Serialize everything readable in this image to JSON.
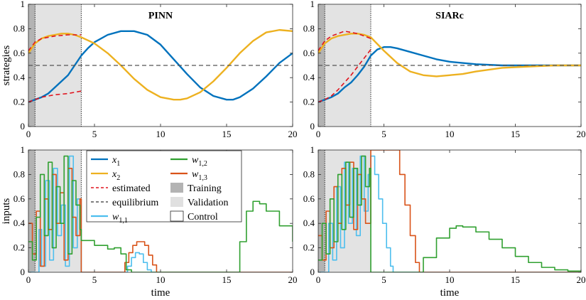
{
  "chart_data": [
    {
      "type": "line",
      "title": "PINN",
      "ylabel": "strategies",
      "xlabel": "",
      "xlim": [
        0,
        20
      ],
      "ylim": [
        0,
        1
      ],
      "xticks": [
        "0",
        "5",
        "10",
        "15",
        "20"
      ],
      "yticks": [
        "0",
        "0.2",
        "0.4",
        "0.6",
        "0.8",
        "1"
      ],
      "regions": {
        "training": [
          0,
          0.5
        ],
        "validation": [
          0.5,
          4
        ]
      },
      "series": [
        {
          "name": "x1",
          "color": "#0072BD",
          "style": "solid",
          "x": [
            0,
            0.5,
            1,
            1.5,
            2,
            2.5,
            3,
            3.5,
            4,
            4.5,
            5,
            6,
            7,
            8,
            9,
            10,
            11,
            12,
            13,
            14,
            15,
            15.5,
            16,
            17,
            18,
            19,
            20
          ],
          "y": [
            0.2,
            0.22,
            0.24,
            0.27,
            0.32,
            0.37,
            0.42,
            0.5,
            0.58,
            0.64,
            0.69,
            0.75,
            0.78,
            0.78,
            0.75,
            0.67,
            0.55,
            0.43,
            0.32,
            0.25,
            0.22,
            0.22,
            0.24,
            0.31,
            0.41,
            0.52,
            0.6
          ]
        },
        {
          "name": "x2",
          "color": "#EDB120",
          "style": "solid",
          "x": [
            0,
            0.5,
            1,
            1.5,
            2,
            2.5,
            3,
            3.5,
            4,
            5,
            6,
            7,
            8,
            9,
            10,
            11,
            11.5,
            12,
            13,
            14,
            15,
            16,
            17,
            18,
            19,
            20
          ],
          "y": [
            0.6,
            0.68,
            0.72,
            0.74,
            0.75,
            0.76,
            0.76,
            0.75,
            0.73,
            0.68,
            0.6,
            0.5,
            0.39,
            0.3,
            0.24,
            0.22,
            0.22,
            0.23,
            0.28,
            0.37,
            0.48,
            0.6,
            0.7,
            0.77,
            0.79,
            0.78
          ]
        },
        {
          "name": "estimated",
          "color": "#E0141E",
          "style": "dashed",
          "x": [
            0,
            1,
            2,
            3,
            4
          ],
          "y": [
            0.2,
            0.24,
            0.26,
            0.27,
            0.29
          ]
        },
        {
          "name": "estimated",
          "color": "#E0141E",
          "style": "dashed",
          "x": [
            0,
            0.5,
            1,
            2,
            3,
            4
          ],
          "y": [
            0.62,
            0.69,
            0.72,
            0.74,
            0.75,
            0.75
          ]
        },
        {
          "name": "equilibrium",
          "color": "#555555",
          "style": "dashed",
          "x": [
            0,
            20
          ],
          "y": [
            0.5,
            0.5
          ]
        }
      ]
    },
    {
      "type": "line",
      "title": "SIARc",
      "ylabel": "",
      "xlabel": "",
      "xlim": [
        0,
        20
      ],
      "ylim": [
        0,
        1
      ],
      "xticks": [
        "0",
        "5",
        "10",
        "15",
        "20"
      ],
      "yticks": [
        "0",
        "0.2",
        "0.4",
        "0.6",
        "0.8",
        "1"
      ],
      "regions": {
        "training": [
          0,
          0.5
        ],
        "validation": [
          0.5,
          4
        ]
      },
      "series": [
        {
          "name": "x1",
          "color": "#0072BD",
          "style": "solid",
          "x": [
            0,
            0.5,
            1,
            1.5,
            2,
            2.5,
            3,
            3.5,
            4,
            4.5,
            5,
            5.5,
            6,
            7,
            8,
            9,
            10,
            12,
            14,
            16,
            18,
            20
          ],
          "y": [
            0.2,
            0.22,
            0.24,
            0.27,
            0.32,
            0.36,
            0.42,
            0.49,
            0.58,
            0.63,
            0.65,
            0.65,
            0.64,
            0.61,
            0.58,
            0.55,
            0.53,
            0.51,
            0.5,
            0.5,
            0.5,
            0.5
          ]
        },
        {
          "name": "x2",
          "color": "#EDB120",
          "style": "solid",
          "x": [
            0,
            0.5,
            1,
            1.5,
            2,
            2.5,
            3,
            3.5,
            4,
            5,
            6,
            7,
            8,
            9,
            10,
            11,
            12,
            14,
            16,
            18,
            20
          ],
          "y": [
            0.6,
            0.68,
            0.72,
            0.74,
            0.75,
            0.76,
            0.76,
            0.75,
            0.73,
            0.62,
            0.52,
            0.45,
            0.42,
            0.41,
            0.42,
            0.43,
            0.45,
            0.48,
            0.49,
            0.5,
            0.5
          ]
        },
        {
          "name": "estimated",
          "color": "#E0141E",
          "style": "dashed",
          "x": [
            0,
            0.5,
            1,
            1.5,
            2,
            2.5,
            3,
            3.5,
            4
          ],
          "y": [
            0.2,
            0.22,
            0.25,
            0.3,
            0.36,
            0.42,
            0.49,
            0.56,
            0.63
          ]
        },
        {
          "name": "estimated",
          "color": "#E0141E",
          "style": "dashed",
          "x": [
            0,
            0.5,
            1,
            1.5,
            2,
            2.5,
            3,
            3.5,
            4
          ],
          "y": [
            0.62,
            0.7,
            0.74,
            0.76,
            0.78,
            0.77,
            0.76,
            0.74,
            0.72
          ]
        },
        {
          "name": "equilibrium",
          "color": "#555555",
          "style": "dashed",
          "x": [
            0,
            20
          ],
          "y": [
            0.5,
            0.5
          ]
        }
      ]
    },
    {
      "type": "line",
      "title": "",
      "ylabel": "inputs",
      "xlabel": "time",
      "xlim": [
        0,
        20
      ],
      "ylim": [
        0,
        1
      ],
      "xticks": [
        "0",
        "5",
        "10",
        "15",
        "20"
      ],
      "yticks": [
        "0",
        "0.2",
        "0.4",
        "0.6",
        "0.8",
        "1"
      ],
      "regions": {
        "training": [
          0,
          0.5
        ],
        "validation": [
          0.5,
          4
        ]
      },
      "series": [
        {
          "name": "w_{1,1}",
          "color": "#4DBEEE",
          "style": "step",
          "x": [
            0,
            0.5,
            0.8,
            1.0,
            1.3,
            1.6,
            1.9,
            2.2,
            2.5,
            2.8,
            3.1,
            3.4,
            3.7,
            4.0,
            7.2,
            7.5,
            7.8,
            8.1,
            8.4,
            8.7,
            9.0,
            9.3
          ],
          "y": [
            0,
            0,
            0.35,
            0.05,
            0.75,
            0.1,
            0.85,
            0.3,
            0.55,
            0.05,
            0.95,
            0.2,
            0.6,
            0,
            0,
            0.05,
            0.12,
            0.16,
            0.15,
            0.08,
            0.02,
            0
          ]
        },
        {
          "name": "w_{1,3}",
          "color": "#D95319",
          "style": "step",
          "x": [
            0,
            0.3,
            0.6,
            0.9,
            1.2,
            1.5,
            1.8,
            2.1,
            2.4,
            2.7,
            3.0,
            3.3,
            3.6,
            3.9,
            4.0,
            7.0,
            7.3,
            7.6,
            7.9,
            8.2,
            8.5,
            8.8,
            9.1,
            9.4,
            9.7
          ],
          "y": [
            0.4,
            0.15,
            0.5,
            0.05,
            0.6,
            0.35,
            0.8,
            0.4,
            0.65,
            0.1,
            0.85,
            0.45,
            0.3,
            0.6,
            0,
            0,
            0.08,
            0.16,
            0.22,
            0.25,
            0.25,
            0.22,
            0.14,
            0.06,
            0
          ]
        },
        {
          "name": "w_{1,2}",
          "color": "#30A030",
          "style": "step",
          "x": [
            0,
            0.3,
            0.6,
            0.9,
            1.2,
            1.5,
            1.8,
            2.1,
            2.4,
            2.7,
            3.0,
            3.3,
            3.6,
            3.9,
            4.0,
            5,
            6,
            6.5,
            7.0,
            7.4,
            7.8,
            15.8,
            16.0,
            16.5,
            17.0,
            17.5,
            18,
            19,
            20
          ],
          "y": [
            0.25,
            0.1,
            0.45,
            0.8,
            0.3,
            0.9,
            0.2,
            0.7,
            0.4,
            0.95,
            0.15,
            0.75,
            0.55,
            0.35,
            0.26,
            0.22,
            0.19,
            0.2,
            0.15,
            0.02,
            0,
            0,
            0.25,
            0.5,
            0.58,
            0.56,
            0.5,
            0.38,
            0.25
          ]
        }
      ]
    },
    {
      "type": "line",
      "title": "",
      "ylabel": "",
      "xlabel": "time",
      "xlim": [
        0,
        20
      ],
      "ylim": [
        0,
        1
      ],
      "xticks": [
        "0",
        "5",
        "10",
        "15",
        "20"
      ],
      "yticks": [
        "0",
        "0.2",
        "0.4",
        "0.6",
        "0.8",
        "1"
      ],
      "regions": {
        "training": [
          0,
          0.5
        ],
        "validation": [
          0.5,
          4
        ]
      },
      "series": [
        {
          "name": "w_{1,1}",
          "color": "#4DBEEE",
          "style": "step",
          "x": [
            0,
            0.5,
            0.8,
            1.1,
            1.4,
            1.7,
            2.0,
            2.3,
            2.6,
            2.9,
            3.2,
            3.5,
            3.8,
            4.0,
            4.3,
            4.6,
            4.9,
            5.2,
            5.5,
            5.7
          ],
          "y": [
            0,
            0,
            0.4,
            0.1,
            0.7,
            0.2,
            0.9,
            0.4,
            0.85,
            0.3,
            0.95,
            0.5,
            0.8,
            0.95,
            0.8,
            0.6,
            0.4,
            0.2,
            0.05,
            0
          ]
        },
        {
          "name": "w_{1,3}",
          "color": "#D95319",
          "style": "step",
          "x": [
            0,
            0.3,
            0.6,
            0.9,
            1.2,
            1.5,
            1.8,
            2.1,
            2.4,
            2.7,
            3.0,
            3.3,
            3.6,
            4.0,
            5.8,
            6.2,
            6.6,
            7.0,
            7.4,
            7.7
          ],
          "y": [
            0.3,
            0.1,
            0.5,
            0.2,
            0.7,
            0.4,
            0.85,
            0.55,
            0.9,
            0.35,
            0.8,
            0.6,
            0.4,
            1.0,
            1.0,
            0.8,
            0.55,
            0.3,
            0.08,
            0
          ]
        },
        {
          "name": "w_{1,2}",
          "color": "#30A030",
          "style": "step",
          "x": [
            0,
            0.3,
            0.6,
            0.9,
            1.2,
            1.5,
            1.8,
            2.1,
            2.4,
            2.7,
            3.0,
            3.3,
            3.6,
            3.9,
            4.0,
            7.6,
            8,
            9,
            10,
            10.5,
            11,
            12,
            13,
            14,
            15,
            16,
            17,
            18,
            19,
            20
          ],
          "y": [
            0.1,
            0.4,
            0.15,
            0.6,
            0.25,
            0.8,
            0.35,
            0.9,
            0.45,
            0.85,
            0.55,
            0.95,
            0.7,
            0.85,
            0,
            0,
            0.12,
            0.28,
            0.36,
            0.38,
            0.37,
            0.33,
            0.27,
            0.2,
            0.13,
            0.08,
            0.04,
            0.02,
            0.01,
            0.01
          ]
        }
      ]
    }
  ],
  "legend": {
    "entries": [
      {
        "label": "x",
        "sub": "1",
        "color": "#0072BD",
        "kind": "line"
      },
      {
        "label": "x",
        "sub": "2",
        "color": "#EDB120",
        "kind": "line"
      },
      {
        "label": "estimated",
        "sub": "",
        "color": "#E0141E",
        "kind": "dashed"
      },
      {
        "label": "equilibrium",
        "sub": "",
        "color": "#555555",
        "kind": "dashed"
      },
      {
        "label": "w",
        "sub": "1,1",
        "color": "#4DBEEE",
        "kind": "line"
      },
      {
        "label": "w",
        "sub": "1,2",
        "color": "#30A030",
        "kind": "line"
      },
      {
        "label": "w",
        "sub": "1,3",
        "color": "#D95319",
        "kind": "line"
      },
      {
        "label": "Training",
        "sub": "",
        "color": "#b3b3b3",
        "kind": "patch"
      },
      {
        "label": "Validation",
        "sub": "",
        "color": "#e0e0e0",
        "kind": "patch"
      },
      {
        "label": "Control",
        "sub": "",
        "color": "#ffffff",
        "kind": "patch"
      }
    ]
  }
}
